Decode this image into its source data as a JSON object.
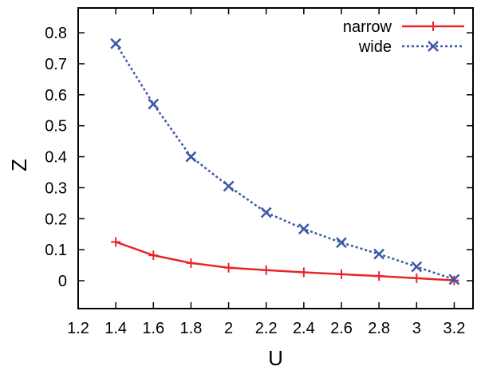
{
  "chart_data": {
    "type": "line",
    "xlabel": "U",
    "ylabel": "Z",
    "xlim": [
      1.2,
      3.3
    ],
    "ylim": [
      -0.09,
      0.88
    ],
    "xticks": [
      1.2,
      1.4,
      1.6,
      1.8,
      2,
      2.2,
      2.4,
      2.6,
      2.8,
      3,
      3.2
    ],
    "xtick_labels": [
      "1.2",
      "1.4",
      "1.6",
      "1.8",
      "2",
      "2.2",
      "2.4",
      "2.6",
      "2.8",
      "3",
      "3.2"
    ],
    "yticks": [
      0,
      0.1,
      0.2,
      0.3,
      0.4,
      0.5,
      0.6,
      0.7,
      0.8
    ],
    "ytick_labels": [
      "0",
      "0.1",
      "0.2",
      "0.3",
      "0.4",
      "0.5",
      "0.6",
      "0.7",
      "0.8"
    ],
    "grid": false,
    "legend": "top-right",
    "x": [
      1.4,
      1.6,
      1.8,
      2.0,
      2.2,
      2.4,
      2.6,
      2.8,
      3.0,
      3.2
    ],
    "series": [
      {
        "name": "narrow",
        "color": "#e8262a",
        "line_style": "solid",
        "marker": "plus",
        "values": [
          0.125,
          0.082,
          0.057,
          0.042,
          0.034,
          0.027,
          0.021,
          0.015,
          0.008,
          0.001
        ]
      },
      {
        "name": "wide",
        "color": "#3b58a8",
        "line_style": "dotted",
        "marker": "cross",
        "values": [
          0.765,
          0.57,
          0.4,
          0.305,
          0.22,
          0.167,
          0.123,
          0.086,
          0.045,
          0.004
        ]
      }
    ]
  }
}
